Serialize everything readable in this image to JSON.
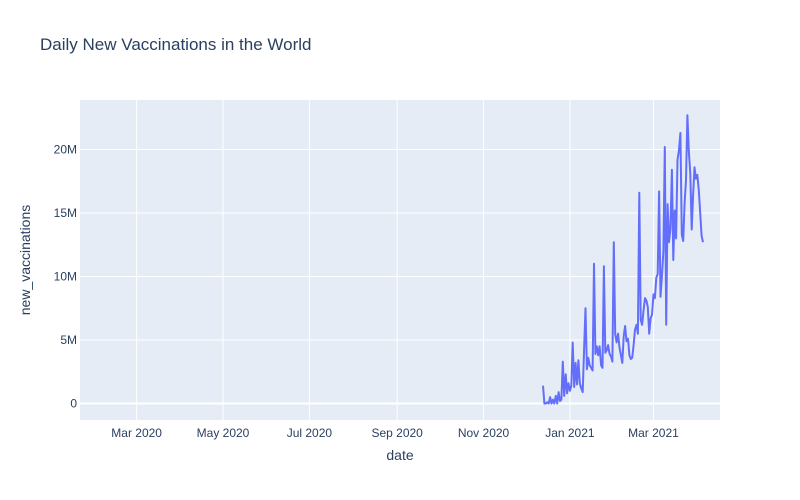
{
  "chart_data": {
    "type": "line",
    "title": "Daily New Vaccinations in the World",
    "xlabel": "date",
    "ylabel": "new_vaccinations",
    "x_ticks": [
      {
        "date": "2020-03-01",
        "label": "Mar 2020"
      },
      {
        "date": "2020-05-01",
        "label": "May 2020"
      },
      {
        "date": "2020-07-01",
        "label": "Jul 2020"
      },
      {
        "date": "2020-09-01",
        "label": "Sep 2020"
      },
      {
        "date": "2020-11-01",
        "label": "Nov 2020"
      },
      {
        "date": "2021-01-01",
        "label": "Jan 2021"
      },
      {
        "date": "2021-03-01",
        "label": "Mar 2021"
      }
    ],
    "y_ticks": [
      {
        "value": 0,
        "label": "0"
      },
      {
        "value": 5000000,
        "label": "5M"
      },
      {
        "value": 10000000,
        "label": "10M"
      },
      {
        "value": 15000000,
        "label": "15M"
      },
      {
        "value": 20000000,
        "label": "20M"
      }
    ],
    "xlim": [
      "2020-01-21",
      "2021-04-17"
    ],
    "ylim": [
      -1300000,
      23900000
    ],
    "grid": true,
    "line_color": "#636efa",
    "series": [
      {
        "points": [
          [
            "2020-12-13",
            1400000
          ],
          [
            "2020-12-14",
            0
          ],
          [
            "2020-12-15",
            0
          ],
          [
            "2020-12-16",
            100000
          ],
          [
            "2020-12-17",
            0
          ],
          [
            "2020-12-18",
            500000
          ],
          [
            "2020-12-19",
            0
          ],
          [
            "2020-12-20",
            300000
          ],
          [
            "2020-12-21",
            0
          ],
          [
            "2020-12-22",
            600000
          ],
          [
            "2020-12-23",
            0
          ],
          [
            "2020-12-24",
            900000
          ],
          [
            "2020-12-25",
            200000
          ],
          [
            "2020-12-26",
            300000
          ],
          [
            "2020-12-27",
            3300000
          ],
          [
            "2020-12-28",
            600000
          ],
          [
            "2020-12-29",
            2300000
          ],
          [
            "2020-12-30",
            800000
          ],
          [
            "2020-12-31",
            1600000
          ],
          [
            "2021-01-01",
            1000000
          ],
          [
            "2021-01-02",
            1400000
          ],
          [
            "2021-01-03",
            4800000
          ],
          [
            "2021-01-04",
            1300000
          ],
          [
            "2021-01-05",
            3200000
          ],
          [
            "2021-01-06",
            1500000
          ],
          [
            "2021-01-07",
            3400000
          ],
          [
            "2021-01-08",
            1600000
          ],
          [
            "2021-01-09",
            1200000
          ],
          [
            "2021-01-10",
            900000
          ],
          [
            "2021-01-11",
            4300000
          ],
          [
            "2021-01-12",
            7500000
          ],
          [
            "2021-01-13",
            2700000
          ],
          [
            "2021-01-14",
            3600000
          ],
          [
            "2021-01-15",
            3000000
          ],
          [
            "2021-01-16",
            2800000
          ],
          [
            "2021-01-17",
            2600000
          ],
          [
            "2021-01-18",
            11000000
          ],
          [
            "2021-01-19",
            3900000
          ],
          [
            "2021-01-20",
            4500000
          ],
          [
            "2021-01-21",
            3800000
          ],
          [
            "2021-01-22",
            4500000
          ],
          [
            "2021-01-23",
            3000000
          ],
          [
            "2021-01-24",
            2800000
          ],
          [
            "2021-01-25",
            10800000
          ],
          [
            "2021-01-26",
            4000000
          ],
          [
            "2021-01-27",
            4200000
          ],
          [
            "2021-01-28",
            4600000
          ],
          [
            "2021-01-29",
            3900000
          ],
          [
            "2021-01-30",
            3700000
          ],
          [
            "2021-01-31",
            3300000
          ],
          [
            "2021-02-01",
            12700000
          ],
          [
            "2021-02-02",
            5500000
          ],
          [
            "2021-02-03",
            4800000
          ],
          [
            "2021-02-04",
            5500000
          ],
          [
            "2021-02-05",
            4400000
          ],
          [
            "2021-02-06",
            3800000
          ],
          [
            "2021-02-07",
            3200000
          ],
          [
            "2021-02-08",
            5300000
          ],
          [
            "2021-02-09",
            6100000
          ],
          [
            "2021-02-10",
            4900000
          ],
          [
            "2021-02-11",
            5100000
          ],
          [
            "2021-02-12",
            3800000
          ],
          [
            "2021-02-13",
            3500000
          ],
          [
            "2021-02-14",
            3600000
          ],
          [
            "2021-02-15",
            4600000
          ],
          [
            "2021-02-16",
            5800000
          ],
          [
            "2021-02-17",
            6200000
          ],
          [
            "2021-02-18",
            5500000
          ],
          [
            "2021-02-19",
            16600000
          ],
          [
            "2021-02-20",
            6600000
          ],
          [
            "2021-02-21",
            6200000
          ],
          [
            "2021-02-22",
            7300000
          ],
          [
            "2021-02-23",
            8300000
          ],
          [
            "2021-02-24",
            8100000
          ],
          [
            "2021-02-25",
            7600000
          ],
          [
            "2021-02-26",
            5500000
          ],
          [
            "2021-02-27",
            6700000
          ],
          [
            "2021-02-28",
            7000000
          ],
          [
            "2021-03-01",
            8600000
          ],
          [
            "2021-03-02",
            8300000
          ],
          [
            "2021-03-03",
            9900000
          ],
          [
            "2021-03-04",
            10200000
          ],
          [
            "2021-03-05",
            16700000
          ],
          [
            "2021-03-06",
            8400000
          ],
          [
            "2021-03-07",
            10000000
          ],
          [
            "2021-03-08",
            12000000
          ],
          [
            "2021-03-09",
            20200000
          ],
          [
            "2021-03-10",
            6200000
          ],
          [
            "2021-03-11",
            15700000
          ],
          [
            "2021-03-12",
            12700000
          ],
          [
            "2021-03-13",
            13700000
          ],
          [
            "2021-03-14",
            18400000
          ],
          [
            "2021-03-15",
            11300000
          ],
          [
            "2021-03-16",
            15200000
          ],
          [
            "2021-03-17",
            13000000
          ],
          [
            "2021-03-18",
            19200000
          ],
          [
            "2021-03-19",
            19900000
          ],
          [
            "2021-03-20",
            21300000
          ],
          [
            "2021-03-21",
            13300000
          ],
          [
            "2021-03-22",
            12800000
          ],
          [
            "2021-03-23",
            15800000
          ],
          [
            "2021-03-24",
            17600000
          ],
          [
            "2021-03-25",
            22700000
          ],
          [
            "2021-03-26",
            19900000
          ],
          [
            "2021-03-27",
            18100000
          ],
          [
            "2021-03-28",
            13700000
          ],
          [
            "2021-03-29",
            16400000
          ],
          [
            "2021-03-30",
            18600000
          ],
          [
            "2021-03-31",
            17700000
          ],
          [
            "2021-04-01",
            18000000
          ],
          [
            "2021-04-02",
            16800000
          ],
          [
            "2021-04-03",
            15000000
          ],
          [
            "2021-04-04",
            13200000
          ],
          [
            "2021-04-05",
            12700000
          ]
        ]
      }
    ]
  }
}
